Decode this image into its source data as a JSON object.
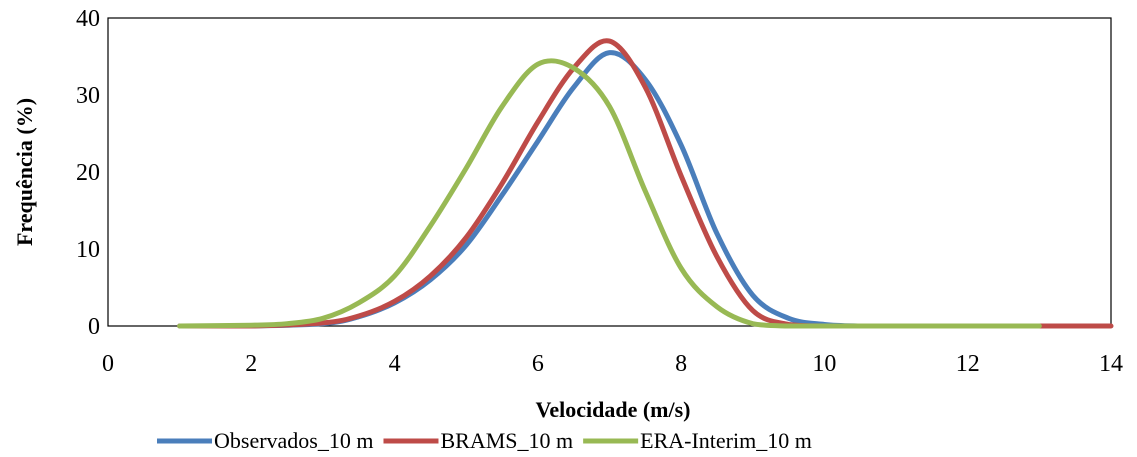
{
  "chart_data": {
    "type": "line",
    "xlabel": "Velocidade (m/s)",
    "ylabel": "Frequência (%)",
    "xlim": [
      0,
      14
    ],
    "ylim": [
      0,
      40
    ],
    "x_ticks": [
      0,
      2,
      4,
      6,
      8,
      10,
      12,
      14
    ],
    "y_ticks": [
      0,
      10,
      20,
      30,
      40
    ],
    "grid": false,
    "legend_position": "bottom",
    "series": [
      {
        "name": "Observados_10 m",
        "color": "#4a7ebb",
        "x": [
          1,
          2,
          3,
          3.5,
          4,
          4.5,
          5,
          5.5,
          6,
          6.5,
          7,
          7.5,
          8,
          8.5,
          9,
          9.5,
          10,
          10.5,
          11,
          12,
          13
        ],
        "y": [
          0,
          0,
          0.3,
          1.2,
          3,
          6,
          10.5,
          17,
          24,
          31,
          35.5,
          32,
          23.5,
          12,
          4,
          1,
          0.2,
          0,
          0,
          0,
          0
        ]
      },
      {
        "name": "BRAMS_10 m",
        "color": "#be4b48",
        "x": [
          1,
          2,
          3,
          3.5,
          4,
          4.5,
          5,
          5.5,
          6,
          6.5,
          7,
          7.5,
          8,
          8.5,
          9,
          9.5,
          10,
          11,
          12,
          13,
          14
        ],
        "y": [
          0,
          0,
          0.4,
          1.3,
          3.2,
          6.5,
          11.5,
          18.5,
          26.5,
          33.5,
          37,
          31,
          19.5,
          9,
          2,
          0.2,
          0,
          0,
          0,
          0,
          0
        ]
      },
      {
        "name": "ERA-Interim_10 m",
        "color": "#98b954",
        "x": [
          1,
          2,
          2.5,
          3,
          3.5,
          4,
          4.5,
          5,
          5.5,
          6,
          6.5,
          7,
          7.5,
          8,
          8.5,
          9,
          9.5,
          10,
          11,
          12,
          13
        ],
        "y": [
          0,
          0.1,
          0.3,
          1,
          3,
          6.5,
          13,
          20.5,
          28.5,
          34,
          33.5,
          28.5,
          17.5,
          7.5,
          2.5,
          0.3,
          0,
          0,
          0,
          0,
          0
        ]
      }
    ]
  }
}
